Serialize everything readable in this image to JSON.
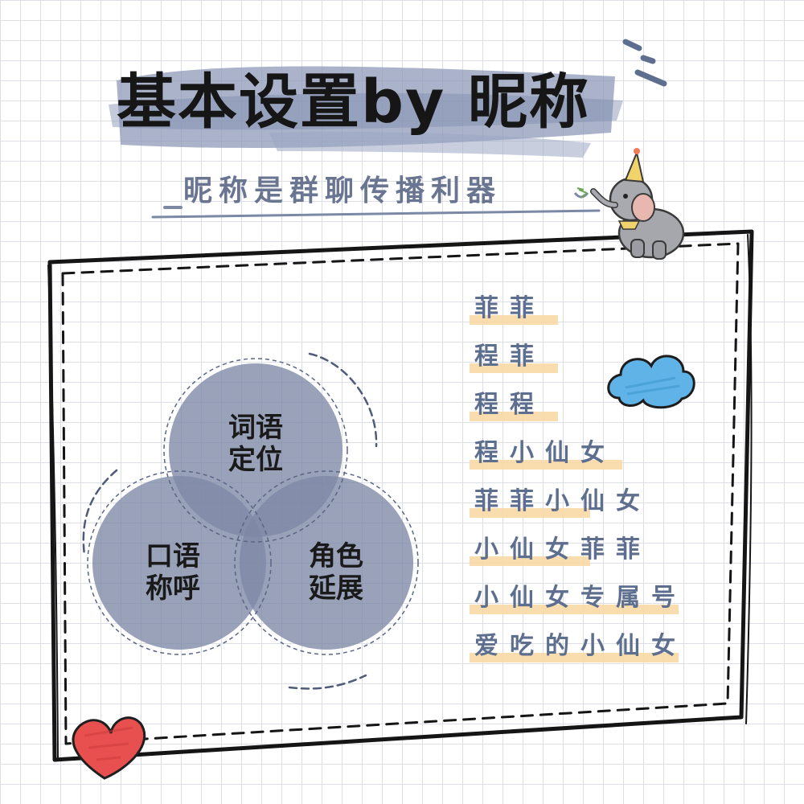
{
  "title": "基本设置by 昵称",
  "subtitle": "昵称是群聊传播利器",
  "venn": {
    "top": {
      "line1": "词语",
      "line2": "定位"
    },
    "left": {
      "line1": "口语",
      "line2": "称呼"
    },
    "right": {
      "line1": "角色",
      "line2": "延展"
    }
  },
  "nicknames": [
    "菲菲",
    "程菲",
    "程程",
    "程小仙女",
    "菲菲小仙女",
    "小仙女菲菲",
    "小仙女专属号",
    "爱吃的小仙女"
  ],
  "colors": {
    "brush": "#8e9ab8",
    "circle": "#7d88a5",
    "nickname_text": "#5d6e8f",
    "highlight": "#f8d9a6",
    "heart": "#e8504f",
    "cloud": "#5fb3e6"
  }
}
